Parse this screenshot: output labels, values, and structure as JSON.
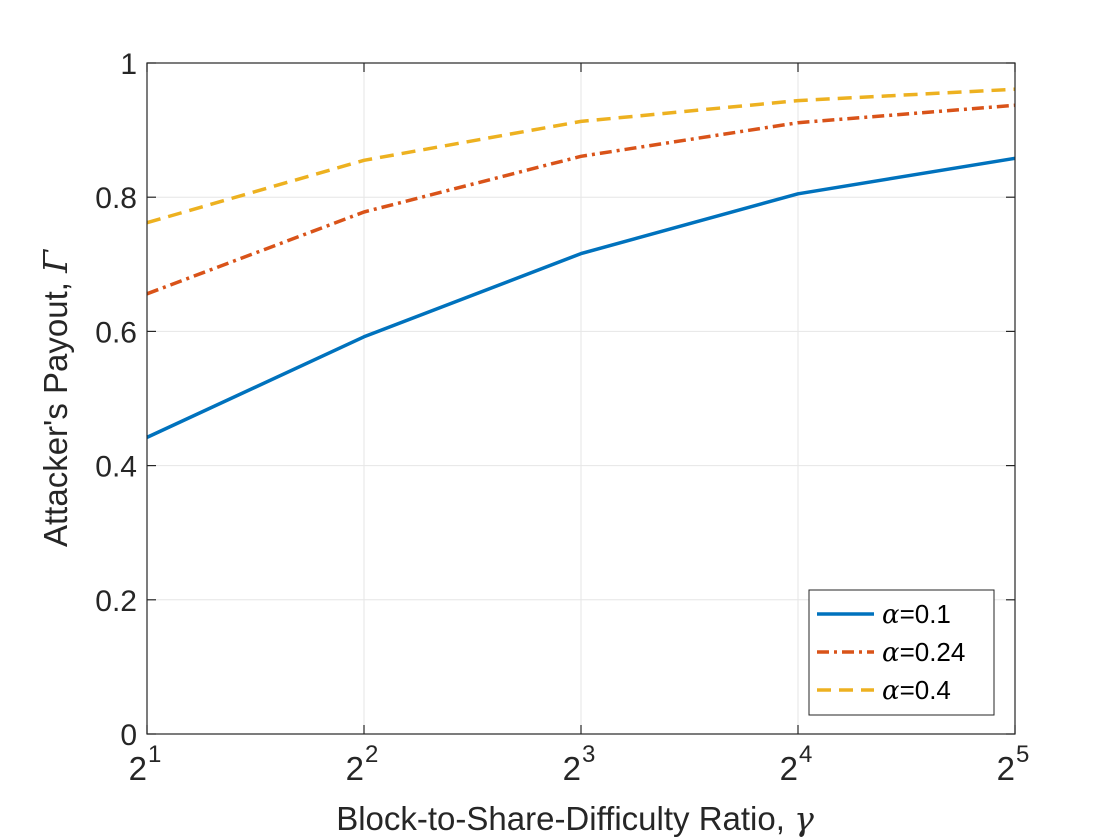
{
  "chart_data": {
    "type": "line",
    "title": "",
    "xlabel": {
      "text": "Block-to-Share-Difficulty Ratio, ",
      "symbol": "γ"
    },
    "ylabel": {
      "text": "Attacker's Payout, ",
      "symbol": "Γ"
    },
    "x_scale": "log2",
    "x": [
      2,
      4,
      8,
      16,
      32
    ],
    "x_ticks": [
      {
        "base": "2",
        "exp": "1",
        "value": 2
      },
      {
        "base": "2",
        "exp": "2",
        "value": 4
      },
      {
        "base": "2",
        "exp": "3",
        "value": 8
      },
      {
        "base": "2",
        "exp": "4",
        "value": 16
      },
      {
        "base": "2",
        "exp": "5",
        "value": 32
      }
    ],
    "ylim": [
      0,
      1
    ],
    "y_ticks": [
      {
        "label": "0",
        "value": 0
      },
      {
        "label": "0.2",
        "value": 0.2
      },
      {
        "label": "0.4",
        "value": 0.4
      },
      {
        "label": "0.6",
        "value": 0.6
      },
      {
        "label": "0.8",
        "value": 0.8
      },
      {
        "label": "1",
        "value": 1
      }
    ],
    "grid": true,
    "legend_position": "bottom-right",
    "series": [
      {
        "name": "α=0.1",
        "symbol": "α",
        "suffix": "=0.1",
        "color": "#0072BD",
        "style": "solid",
        "values": [
          0.442,
          0.592,
          0.716,
          0.805,
          0.858
        ]
      },
      {
        "name": "α=0.24",
        "symbol": "α",
        "suffix": "=0.24",
        "color": "#D95319",
        "style": "dashdot",
        "values": [
          0.656,
          0.778,
          0.861,
          0.911,
          0.937
        ]
      },
      {
        "name": "α=0.4",
        "symbol": "α",
        "suffix": "=0.4",
        "color": "#EDB120",
        "style": "dashed",
        "values": [
          0.762,
          0.855,
          0.913,
          0.944,
          0.961
        ]
      }
    ]
  }
}
